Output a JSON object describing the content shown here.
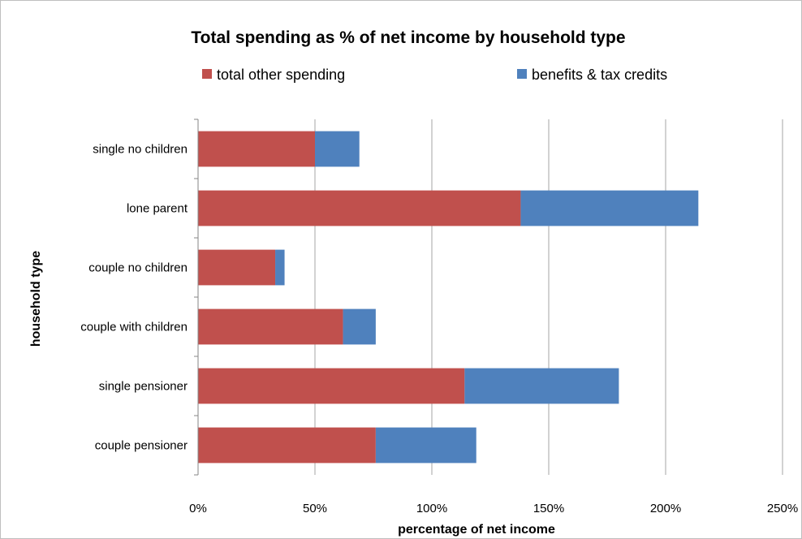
{
  "chart_data": {
    "type": "bar",
    "orientation": "horizontal",
    "stacked": true,
    "title": "Total spending as % of net income by household type",
    "xlabel": "percentage of net income",
    "ylabel": "household type",
    "categories": [
      "single no children",
      "lone parent",
      "couple no children",
      "couple with children",
      "single pensioner",
      "couple pensioner"
    ],
    "series": [
      {
        "name": "total other spending",
        "color": "#c0504d",
        "values": [
          50,
          138,
          33,
          62,
          114,
          76
        ]
      },
      {
        "name": "benefits & tax credits",
        "color": "#4f81bd",
        "values": [
          19,
          76,
          4,
          14,
          66,
          43
        ]
      }
    ],
    "xlim": [
      0,
      250
    ],
    "x_ticks": [
      0,
      50,
      100,
      150,
      200,
      250
    ],
    "x_tick_labels": [
      "0%",
      "50%",
      "100%",
      "150%",
      "200%",
      "250%"
    ],
    "grid": "vertical",
    "legend_position": "top"
  }
}
